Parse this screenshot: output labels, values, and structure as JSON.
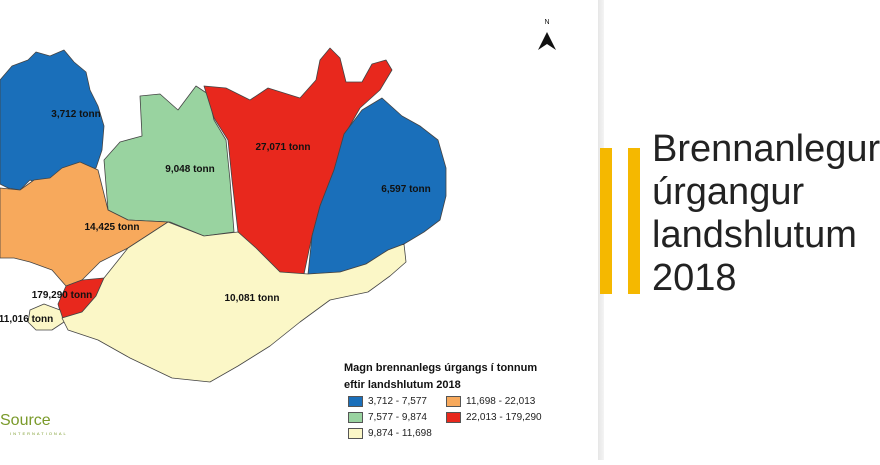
{
  "slide": {
    "title_lines": [
      "Brennanlegur",
      "úrgangur",
      "landshlutum",
      "2018"
    ],
    "accent_color": "#f5b800"
  },
  "map": {
    "north_label": "N",
    "regions": [
      {
        "id": "westfjords",
        "label": "3,712 tonn",
        "color": "#1a6fba"
      },
      {
        "id": "northwest",
        "label": "9,048 tonn",
        "color": "#99d3a0"
      },
      {
        "id": "northeast",
        "label": "27,071 tonn",
        "color": "#e8281d"
      },
      {
        "id": "east",
        "label": "6,597 tonn",
        "color": "#1a6fba"
      },
      {
        "id": "west",
        "label": "14,425 tonn",
        "color": "#f7a95c"
      },
      {
        "id": "capital",
        "label": "179,290 tonn",
        "color": "#e8281d"
      },
      {
        "id": "southern-peninsula",
        "label": "11,016 tonn",
        "color": "#fbf7c7"
      },
      {
        "id": "south",
        "label": "10,081 tonn",
        "color": "#fbf7c7"
      }
    ]
  },
  "legend": {
    "title_line1": "Magn brennanlegs úrgangs í tonnum",
    "title_line2": "eftir landshlutum 2018",
    "items": [
      {
        "label": "3,712 - 7,577",
        "color": "#1a6fba"
      },
      {
        "label": "7,577 - 9,874",
        "color": "#99d3a0"
      },
      {
        "label": "9,874 - 11,698",
        "color": "#fbf7c7"
      },
      {
        "label": "11,698 - 22,013",
        "color": "#f7a95c"
      },
      {
        "label": "22,013 - 179,290",
        "color": "#e8281d"
      }
    ]
  },
  "logo": {
    "name": "Source",
    "sub": "INTERNATIONAL"
  }
}
